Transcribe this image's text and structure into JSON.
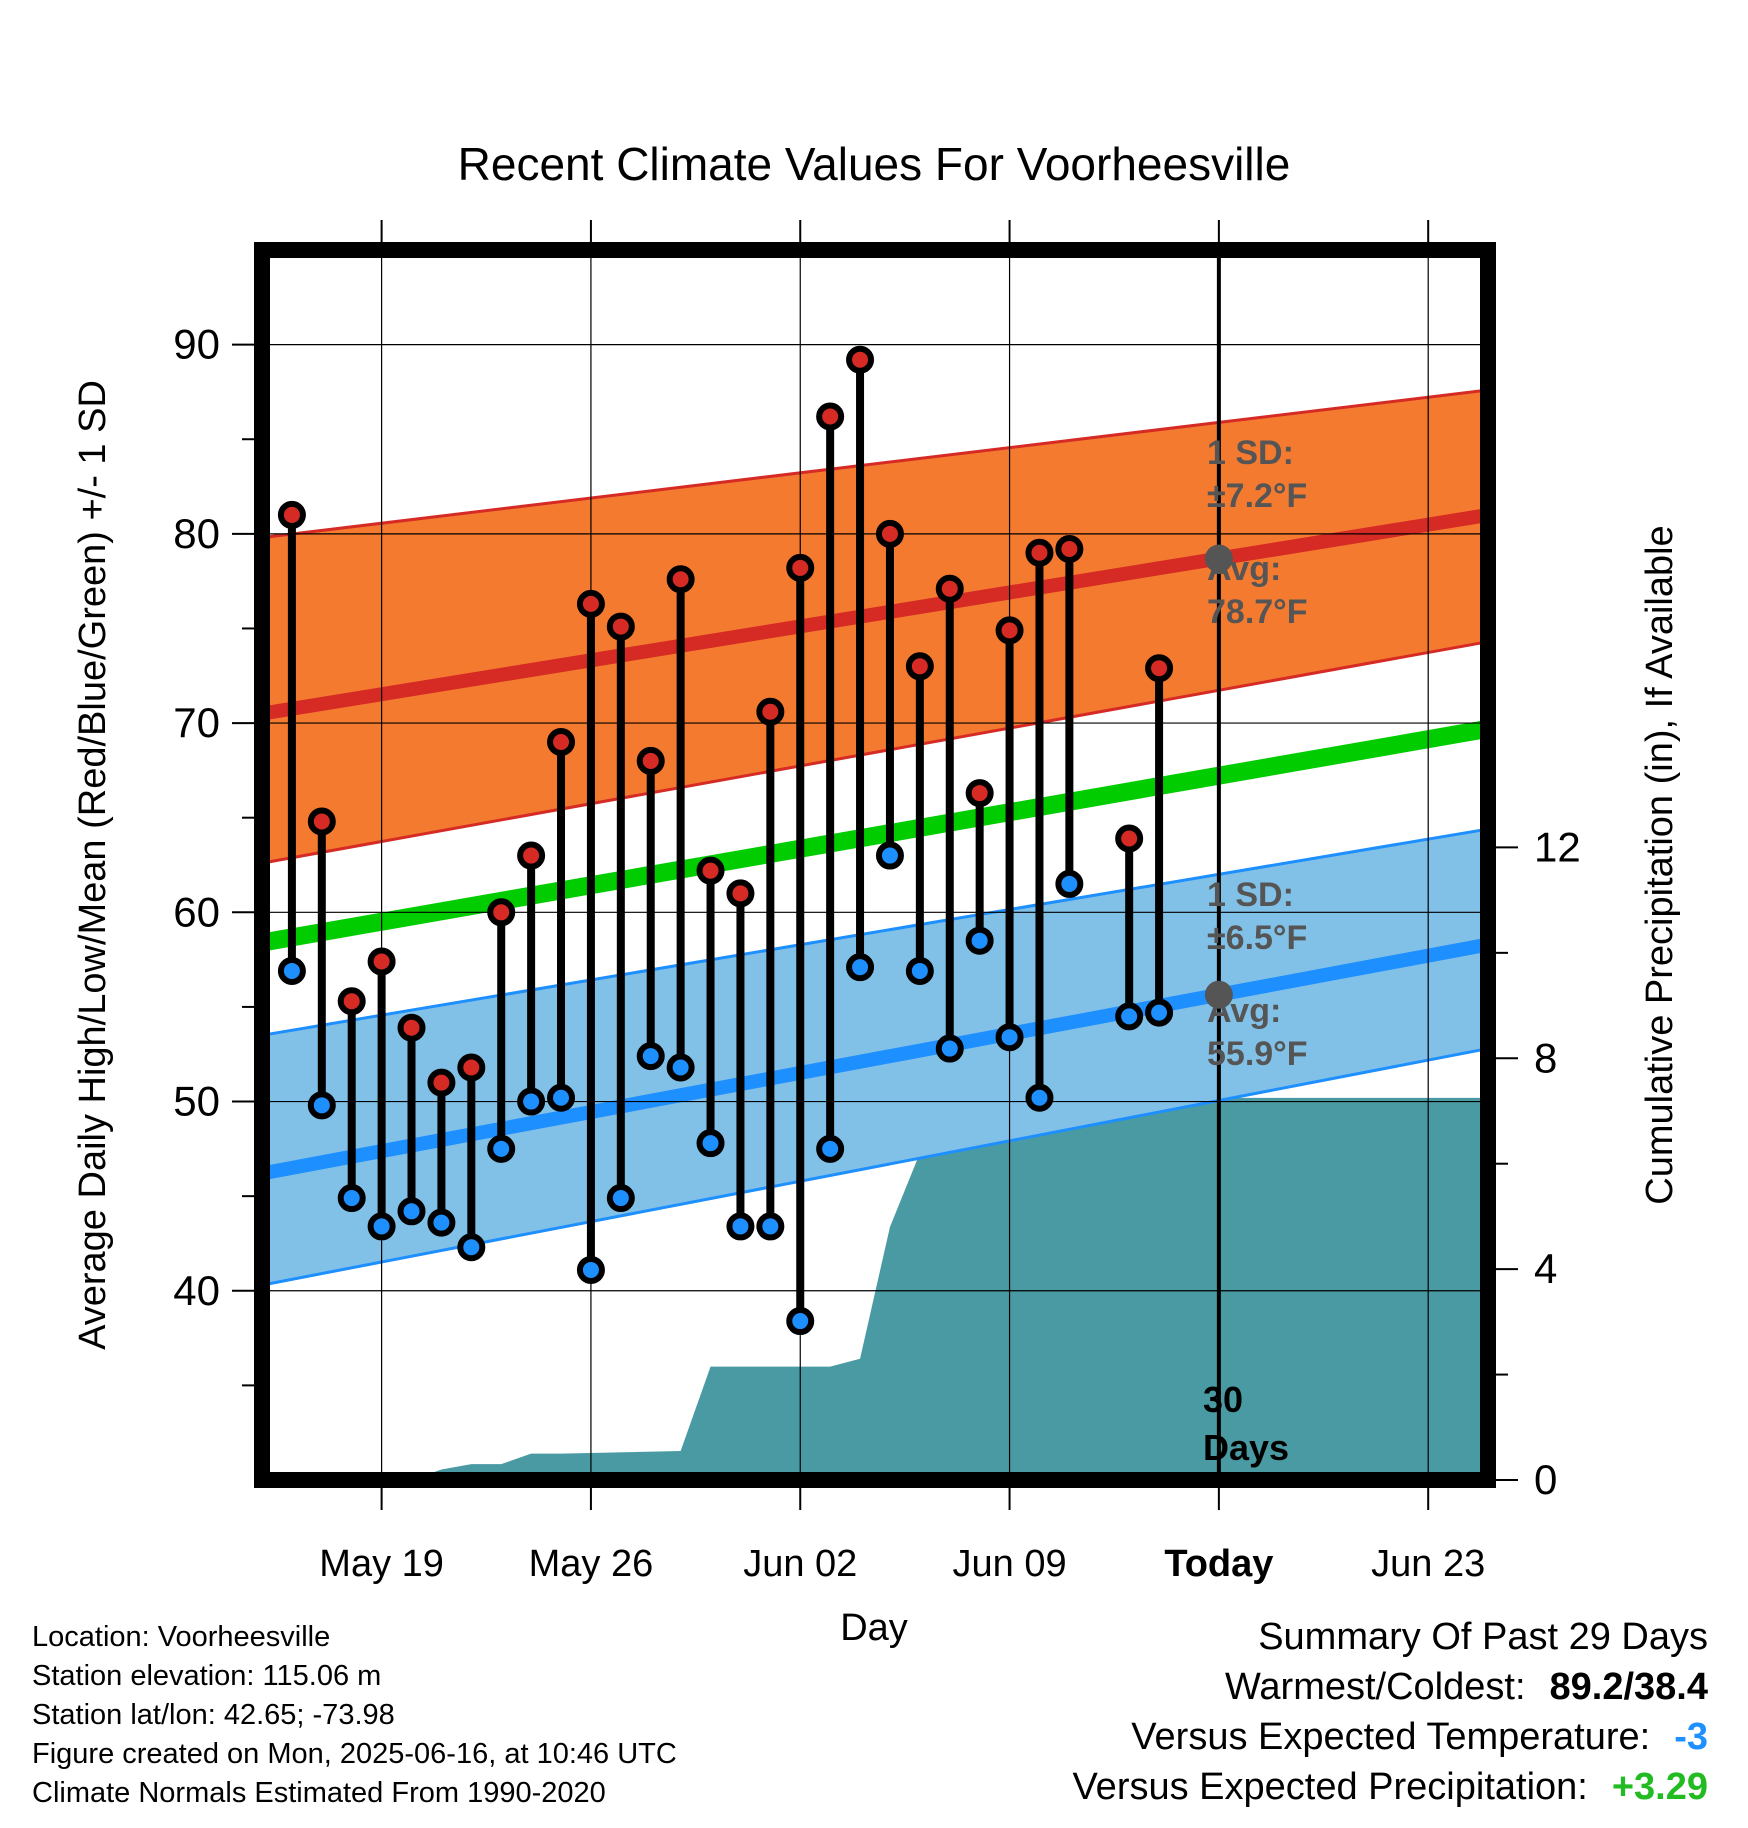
{
  "chart_data": {
    "type": "line",
    "title": "Recent Climate Values For Voorheesville",
    "xlabel": "Day",
    "ylabel": "Average Daily High/Low/Mean (Red/Blue/Green) +/- 1 SD",
    "y2label": "Cumulative Precipitation (in), If Available",
    "ylim": [
      30,
      95
    ],
    "y2lim": [
      0,
      23.333
    ],
    "yticks": [
      40,
      50,
      60,
      70,
      80,
      90
    ],
    "y2ticks": [
      0,
      4,
      8,
      12
    ],
    "xlim": [
      "2025-05-15",
      "2025-06-25"
    ],
    "xticks": [
      {
        "date": "2025-05-19",
        "label": "May 19"
      },
      {
        "date": "2025-05-26",
        "label": "May 26"
      },
      {
        "date": "2025-06-02",
        "label": "Jun 02"
      },
      {
        "date": "2025-06-09",
        "label": "Jun 09"
      },
      {
        "date": "2025-06-16",
        "label": "Today"
      },
      {
        "date": "2025-06-23",
        "label": "Jun 23"
      }
    ],
    "grid": true,
    "today": "2025-06-16",
    "today_label_num": "30",
    "today_label_word": "Days",
    "normals": {
      "x": [
        "2025-05-15",
        "2025-06-25"
      ],
      "high_avg": [
        70.5,
        81.0
      ],
      "high_sd_upper": [
        79.8,
        87.6
      ],
      "high_sd_lower": [
        62.6,
        74.3
      ],
      "low_avg": [
        46.2,
        58.3
      ],
      "low_sd_upper": [
        53.5,
        64.4
      ],
      "low_sd_lower": [
        40.3,
        52.8
      ],
      "mean_avg": [
        58.4,
        69.7
      ]
    },
    "daily": [
      {
        "date": "2025-05-16",
        "high": 81.0,
        "low": 56.9
      },
      {
        "date": "2025-05-17",
        "high": 64.8,
        "low": 49.8
      },
      {
        "date": "2025-05-18",
        "high": 55.3,
        "low": 44.9
      },
      {
        "date": "2025-05-19",
        "high": 57.4,
        "low": 43.4
      },
      {
        "date": "2025-05-20",
        "high": 53.9,
        "low": 44.2
      },
      {
        "date": "2025-05-21",
        "high": 51.0,
        "low": 43.6
      },
      {
        "date": "2025-05-22",
        "high": 51.8,
        "low": 42.3
      },
      {
        "date": "2025-05-23",
        "high": 60.0,
        "low": 47.5
      },
      {
        "date": "2025-05-24",
        "high": 63.0,
        "low": 50.0
      },
      {
        "date": "2025-05-25",
        "high": 69.0,
        "low": 50.2
      },
      {
        "date": "2025-05-26",
        "high": 76.3,
        "low": 41.1
      },
      {
        "date": "2025-05-27",
        "high": 75.1,
        "low": 44.9
      },
      {
        "date": "2025-05-28",
        "high": 68.0,
        "low": 52.4
      },
      {
        "date": "2025-05-29",
        "high": 77.6,
        "low": 51.8
      },
      {
        "date": "2025-05-30",
        "high": 62.2,
        "low": 47.8
      },
      {
        "date": "2025-05-31",
        "high": 61.0,
        "low": 43.4
      },
      {
        "date": "2025-06-01",
        "high": 70.6,
        "low": 43.4
      },
      {
        "date": "2025-06-02",
        "high": 78.2,
        "low": 38.4
      },
      {
        "date": "2025-06-03",
        "high": 86.2,
        "low": 47.5
      },
      {
        "date": "2025-06-04",
        "high": 89.2,
        "low": 57.1
      },
      {
        "date": "2025-06-05",
        "high": 80.0,
        "low": 63.0
      },
      {
        "date": "2025-06-06",
        "high": 73.0,
        "low": 56.9
      },
      {
        "date": "2025-06-07",
        "high": 77.1,
        "low": 52.8
      },
      {
        "date": "2025-06-08",
        "high": 66.3,
        "low": 58.5
      },
      {
        "date": "2025-06-09",
        "high": 74.9,
        "low": 53.4
      },
      {
        "date": "2025-06-10",
        "high": 79.0,
        "low": 50.2
      },
      {
        "date": "2025-06-11",
        "high": 79.2,
        "low": 61.5
      },
      {
        "date": "2025-06-13",
        "high": 63.9,
        "low": 54.5
      },
      {
        "date": "2025-06-14",
        "high": 72.9,
        "low": 54.7
      }
    ],
    "precip_cumulative": {
      "x": [
        "2025-05-15",
        "2025-05-20",
        "2025-05-21",
        "2025-05-22",
        "2025-05-23",
        "2025-05-24",
        "2025-05-25",
        "2025-05-29",
        "2025-05-30",
        "2025-06-03",
        "2025-06-04",
        "2025-06-05",
        "2025-06-06",
        "2025-06-07",
        "2025-06-08",
        "2025-06-09",
        "2025-06-10",
        "2025-06-11",
        "2025-06-12",
        "2025-06-13",
        "2025-06-25"
      ],
      "y": [
        0.0,
        0.0,
        0.2,
        0.3,
        0.3,
        0.5,
        0.5,
        0.55,
        2.15,
        2.15,
        2.3,
        4.8,
        6.2,
        6.25,
        6.5,
        7.1,
        7.1,
        7.1,
        7.1,
        7.25,
        7.25
      ]
    },
    "annotations": {
      "high_sd_label": "1 SD:",
      "high_sd_value": "±7.2°F",
      "high_avg_label": "Avg:",
      "high_avg_value": "78.7°F",
      "low_sd_label": "1 SD:",
      "low_sd_value": "±6.5°F",
      "low_avg_label": "Avg:",
      "low_avg_value": "55.9°F"
    },
    "colors": {
      "high_band": "#f47a30",
      "high_line": "#d52b24",
      "low_band": "#82c1e7",
      "low_line": "#1e8fff",
      "mean_line": "#00cc00",
      "precip": "#4a9aa3",
      "high_marker": "#d52b24",
      "low_marker": "#1e8fff"
    }
  },
  "footer": {
    "location": "Location: Voorheesville",
    "elevation": "Station elevation: 115.06 m",
    "latlon": "Station lat/lon: 42.65; -73.98",
    "created": "Figure created on Mon, 2025-06-16, at 10:46 UTC",
    "normals": "Climate Normals Estimated From 1990-2020"
  },
  "summary": {
    "title": "Summary Of Past 29 Days",
    "warm_cold_label": "Warmest/Coldest:",
    "warm_cold_value": "89.2/38.4",
    "temp_label": "Versus Expected Temperature:",
    "temp_value": "-3",
    "precip_label": "Versus Expected Precipitation:",
    "precip_value": "+3.29"
  }
}
